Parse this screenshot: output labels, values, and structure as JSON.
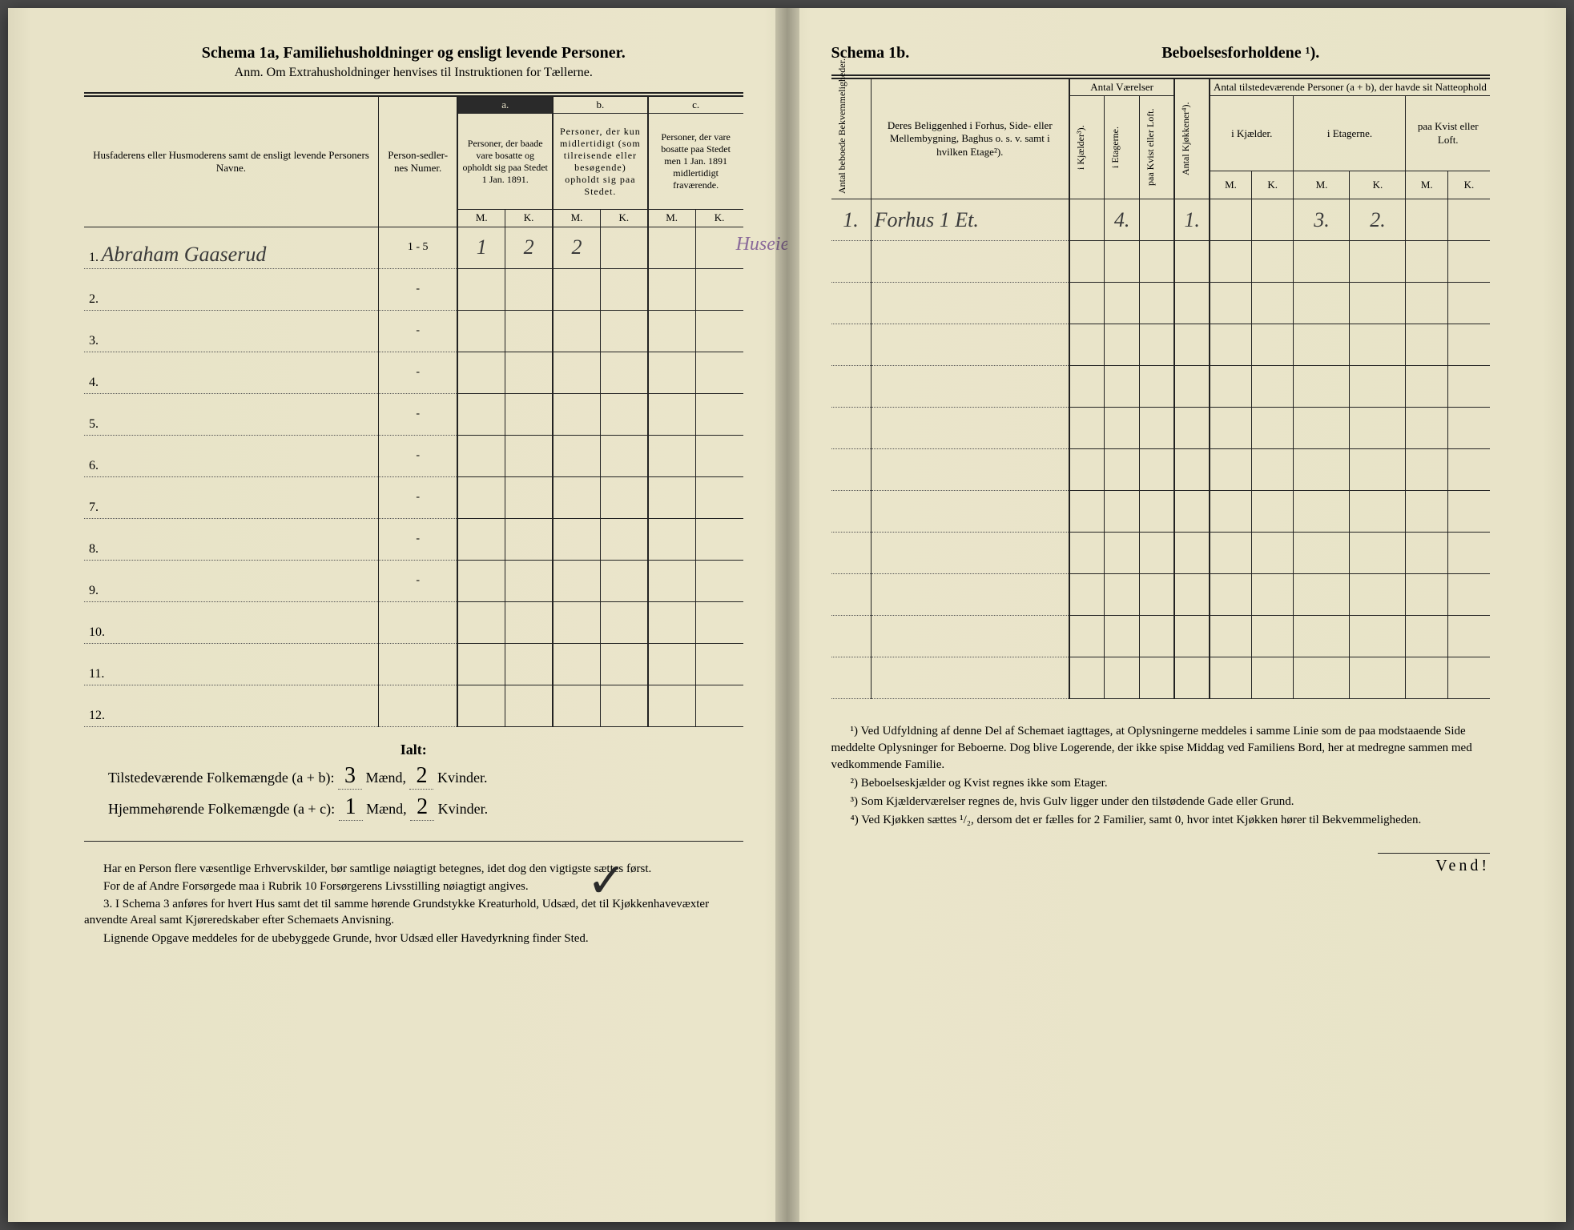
{
  "left": {
    "header_title": "Schema 1a,  Familiehusholdninger og ensligt levende Personer.",
    "anm": "Anm. Om Extrahusholdninger henvises til Instruktionen for Tællerne.",
    "columns": {
      "name_header": "Husfaderens eller Husmoderens samt de ensligt levende Personers Navne.",
      "numer": "Person-sedler-nes Numer.",
      "a_label": "a.",
      "a_desc": "Personer, der baade vare bosatte og opholdt sig paa Stedet 1 Jan. 1891.",
      "b_label": "b.",
      "b_desc": "Personer, der kun midlertidigt (som tilreisende eller besøgende) opholdt sig paa Stedet.",
      "c_label": "c.",
      "c_desc": "Personer, der vare bosatte paa Stedet men 1 Jan. 1891 midlertidigt fraværende.",
      "m": "M.",
      "k": "K."
    },
    "rows": [
      {
        "num": "1.",
        "name": "Abraham Gaaserud",
        "numer": "1 - 5",
        "am": "1",
        "ak": "2",
        "bm": "2",
        "bk": "",
        "cm": "",
        "ck": "",
        "note": "Huseier"
      },
      {
        "num": "2.",
        "name": "",
        "numer": "-"
      },
      {
        "num": "3.",
        "name": "",
        "numer": "-"
      },
      {
        "num": "4.",
        "name": "",
        "numer": "-"
      },
      {
        "num": "5.",
        "name": "",
        "numer": "-"
      },
      {
        "num": "6.",
        "name": "",
        "numer": "-"
      },
      {
        "num": "7.",
        "name": "",
        "numer": "-"
      },
      {
        "num": "8.",
        "name": "",
        "numer": "-"
      },
      {
        "num": "9.",
        "name": "",
        "numer": "-"
      },
      {
        "num": "10.",
        "name": "",
        "numer": ""
      },
      {
        "num": "11.",
        "name": "",
        "numer": ""
      },
      {
        "num": "12.",
        "name": "",
        "numer": ""
      }
    ],
    "ialt": "Ialt:",
    "summary1_label": "Tilstedeværende Folkemængde (a + b):",
    "summary1_m": "3",
    "summary1_m_label": "Mænd,",
    "summary1_k": "2",
    "summary1_k_label": "Kvinder.",
    "summary2_label": "Hjemmehørende Folkemængde (a + c):",
    "summary2_m": "1",
    "summary2_m_label": "Mænd,",
    "summary2_k": "2",
    "summary2_k_label": "Kvinder.",
    "instr1": "Har en Person flere væsentlige Erhvervskilder, bør samtlige nøiagtigt betegnes, idet dog den vigtigste sættes først.",
    "instr2": "For de af Andre Forsørgede maa i Rubrik 10 Forsørgerens Livsstilling nøiagtigt angives.",
    "instr3_num": "3.",
    "instr3": "I Schema 3 anføres for hvert Hus samt det til samme hørende Grundstykke Kreaturhold, Udsæd, det til Kjøkkenhavevæxter anvendte Areal samt Kjøreredskaber efter Schemaets Anvisning.",
    "instr4": "Lignende Opgave meddeles for de ubebyggede Grunde, hvor Udsæd eller Havedyrkning finder Sted."
  },
  "right": {
    "header_left": "Schema 1b.",
    "header_right": "Beboelsesforholdene ¹).",
    "columns": {
      "bekv": "Antal beboede Bekvemmeligheder.",
      "belig": "Deres Beliggenhed i Forhus, Side- eller Mellembygning, Baghus o. s. v. samt i hvilken Etage²).",
      "vaer_header": "Antal Værelser",
      "kjaelder3": "i Kjælder³).",
      "etagerne": "i Etagerne.",
      "kvist": "paa Kvist eller Loft.",
      "kjokken": "Antal Kjøkkener⁴).",
      "tilst_header": "Antal tilstedeværende Personer (a + b), der havde sit Natteophold",
      "ikjael": "i Kjælder.",
      "ietag": "i Etagerne.",
      "paakvist": "paa Kvist eller Loft.",
      "m": "M.",
      "k": "K."
    },
    "rows": [
      {
        "bekv": "1.",
        "belig": "Forhus 1 Et.",
        "kj3": "",
        "etag": "4.",
        "kv": "",
        "kjok": "1.",
        "km": "",
        "kk": "",
        "em": "3.",
        "ek": "2.",
        "lm": "",
        "lk": ""
      }
    ],
    "fn1": "¹) Ved Udfyldning af denne Del af Schemaet iagttages, at Oplysningerne meddeles i samme Linie som de paa modstaaende Side meddelte Oplysninger for Beboerne. Dog blive Logerende, der ikke spise Middag ved Familiens Bord, her at medregne sammen med vedkommende Familie.",
    "fn2": "²) Beboelseskjælder og Kvist regnes ikke som Etager.",
    "fn3": "³) Som Kjælderværelser regnes de, hvis Gulv ligger under den tilstødende Gade eller Grund.",
    "fn4": "⁴) Ved Kjøkken sættes ¹/₂, dersom det er fælles for 2 Familier, samt 0, hvor intet Kjøkken hører til Bekvemmeligheden.",
    "vend": "Vend!"
  },
  "colors": {
    "paper": "#e8e3c8",
    "ink": "#222222",
    "handwriting": "#3a3a3a",
    "handwriting_purple": "#8a6a9a"
  }
}
